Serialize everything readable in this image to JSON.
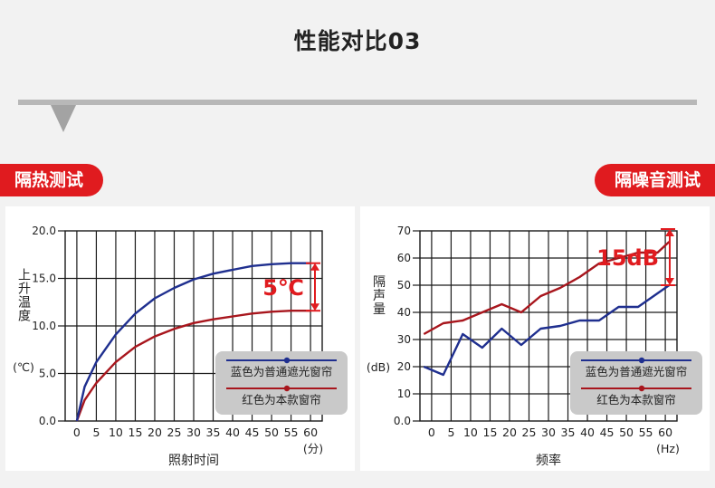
{
  "page": {
    "title": "性能对比03",
    "tag_left": "隔热测试",
    "tag_right": "隔噪音测试"
  },
  "legend": {
    "blue": "蓝色为普通遮光窗帘",
    "red": "红色为本款窗帘"
  },
  "colors": {
    "blue": "#1f2f8f",
    "red": "#a8161d",
    "accent": "#e01b1f",
    "grid": "#1a1a1a",
    "legend_bg": "#c9c9c9"
  },
  "chart_data": [
    {
      "type": "line",
      "xlabel": "照射时间",
      "xunit": "(分)",
      "ylabel": "上升温度",
      "yunit": "(℃)",
      "xlim": [
        0,
        60
      ],
      "ylim": [
        0,
        20
      ],
      "x_ticks": [
        "0",
        "5",
        "10",
        "15",
        "20",
        "25",
        "30",
        "35",
        "40",
        "45",
        "50",
        "55",
        "60"
      ],
      "y_ticks": [
        "0.0",
        "5.0",
        "10.0",
        "15.0",
        "20.0"
      ],
      "grid": true,
      "legend_position": "bottom-right",
      "annotation": "5℃",
      "series": [
        {
          "name": "蓝色为普通遮光窗帘",
          "color": "blue",
          "x": [
            0,
            2,
            5,
            10,
            15,
            20,
            25,
            30,
            35,
            40,
            45,
            50,
            55,
            60
          ],
          "values": [
            0,
            3.6,
            6.2,
            9.1,
            11.3,
            12.9,
            14.0,
            14.9,
            15.5,
            15.9,
            16.3,
            16.5,
            16.6,
            16.6
          ]
        },
        {
          "name": "红色为本款窗帘",
          "color": "red",
          "x": [
            0,
            2,
            5,
            10,
            15,
            20,
            25,
            30,
            35,
            40,
            45,
            50,
            55,
            60
          ],
          "values": [
            0,
            2.2,
            4.0,
            6.2,
            7.8,
            8.9,
            9.7,
            10.3,
            10.7,
            11.0,
            11.3,
            11.5,
            11.6,
            11.6
          ]
        }
      ]
    },
    {
      "type": "line",
      "xlabel": "频率",
      "xunit": "(Hz)",
      "ylabel": "隔声量",
      "yunit": "(dB)",
      "xlim": [
        0,
        60
      ],
      "ylim": [
        0,
        70
      ],
      "x_ticks": [
        "0",
        "5",
        "10",
        "15",
        "20",
        "25",
        "30",
        "35",
        "40",
        "45",
        "50",
        "55",
        "60"
      ],
      "y_ticks": [
        "0.0",
        "10",
        "20",
        "30",
        "40",
        "50",
        "60",
        "70"
      ],
      "grid": true,
      "legend_position": "bottom-right",
      "annotation": "15dB",
      "series": [
        {
          "name": "蓝色为普通遮光窗帘",
          "color": "blue",
          "x": [
            -2,
            3,
            8,
            13,
            18,
            23,
            28,
            33,
            38,
            43,
            48,
            53,
            58,
            61
          ],
          "values": [
            20,
            17,
            32,
            27,
            34,
            28,
            34,
            35,
            37,
            37,
            42,
            42,
            47,
            50
          ]
        },
        {
          "name": "红色为本款窗帘",
          "color": "red",
          "x": [
            -2,
            3,
            8,
            13,
            18,
            23,
            28,
            33,
            38,
            43,
            48,
            53,
            58,
            61
          ],
          "values": [
            32,
            36,
            37,
            40,
            43,
            40,
            46,
            49,
            53,
            58,
            60,
            62,
            62,
            66
          ]
        }
      ]
    }
  ]
}
